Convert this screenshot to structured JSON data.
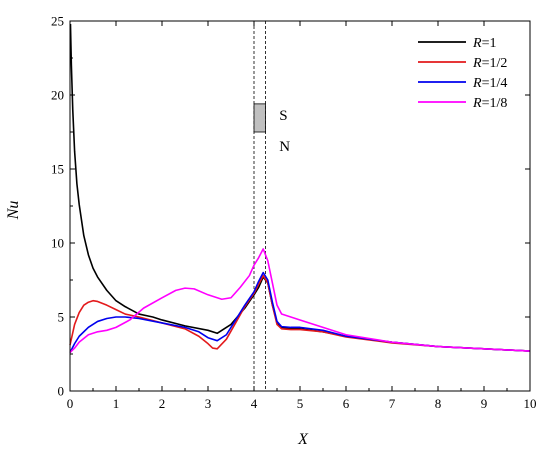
{
  "chart_data": {
    "type": "line",
    "xlabel": "X",
    "ylabel": "Nu",
    "xlim": [
      0,
      10
    ],
    "ylim": [
      0,
      25
    ],
    "xticks": [
      "0",
      "1",
      "2",
      "3",
      "4",
      "5",
      "6",
      "7",
      "8",
      "9",
      "10"
    ],
    "yticks": [
      "0",
      "5",
      "10",
      "15",
      "20",
      "25"
    ],
    "grid": false,
    "legend_position": "top-right",
    "reference_lines_x": [
      4.0,
      4.25
    ],
    "block": {
      "x": [
        4.0,
        4.25
      ],
      "y": [
        17.5,
        19.4
      ],
      "color": "#c0c0c0"
    },
    "annotations": [
      {
        "text": "S",
        "x": 4.55,
        "y": 18.3
      },
      {
        "text": "N",
        "x": 4.55,
        "y": 16.2
      }
    ],
    "series": [
      {
        "name": "R=1",
        "legend_var": "R",
        "legend_val": "=1",
        "color": "#000000",
        "x": [
          0.01,
          0.03,
          0.06,
          0.1,
          0.15,
          0.2,
          0.3,
          0.4,
          0.5,
          0.6,
          0.8,
          1.0,
          1.2,
          1.5,
          1.8,
          2.0,
          2.5,
          3.0,
          3.2,
          3.5,
          3.8,
          4.0,
          4.1,
          4.2,
          4.3,
          4.4,
          4.5,
          4.6,
          4.8,
          5.0,
          5.5,
          6.0,
          7.0,
          8.0,
          9.0,
          10.0
        ],
        "y": [
          24.8,
          22.0,
          19.0,
          16.2,
          14.0,
          12.6,
          10.5,
          9.2,
          8.3,
          7.7,
          6.8,
          6.1,
          5.7,
          5.2,
          5.0,
          4.8,
          4.4,
          4.1,
          3.9,
          4.5,
          5.6,
          6.5,
          7.0,
          7.7,
          7.3,
          5.8,
          4.6,
          4.3,
          4.2,
          4.2,
          4.0,
          3.7,
          3.3,
          3.0,
          2.85,
          2.7
        ]
      },
      {
        "name": "R=1/2",
        "legend_var": "R",
        "legend_val": "=1/2",
        "color": "#e31a1c",
        "x": [
          0.0,
          0.1,
          0.2,
          0.3,
          0.4,
          0.5,
          0.6,
          0.8,
          1.0,
          1.2,
          1.5,
          2.0,
          2.5,
          2.8,
          3.0,
          3.1,
          3.2,
          3.4,
          3.6,
          3.8,
          4.0,
          4.1,
          4.2,
          4.3,
          4.4,
          4.5,
          4.6,
          4.8,
          5.0,
          5.5,
          6.0,
          7.0,
          8.0,
          9.0,
          10.0
        ],
        "y": [
          3.1,
          4.5,
          5.3,
          5.8,
          6.0,
          6.1,
          6.05,
          5.8,
          5.5,
          5.2,
          5.0,
          4.6,
          4.2,
          3.7,
          3.2,
          2.9,
          2.85,
          3.5,
          4.6,
          5.7,
          6.6,
          7.2,
          7.8,
          7.3,
          5.8,
          4.5,
          4.2,
          4.15,
          4.15,
          4.0,
          3.65,
          3.25,
          3.0,
          2.85,
          2.7
        ]
      },
      {
        "name": "R=1/4",
        "legend_var": "R",
        "legend_val": "=1/4",
        "color": "#0000ee",
        "x": [
          0.0,
          0.1,
          0.2,
          0.4,
          0.6,
          0.8,
          1.0,
          1.2,
          1.5,
          2.0,
          2.5,
          2.8,
          3.0,
          3.2,
          3.4,
          3.6,
          3.8,
          4.0,
          4.1,
          4.2,
          4.3,
          4.4,
          4.5,
          4.6,
          4.8,
          5.0,
          5.5,
          6.0,
          7.0,
          8.0,
          9.0,
          10.0
        ],
        "y": [
          2.6,
          3.2,
          3.7,
          4.3,
          4.7,
          4.9,
          5.0,
          5.0,
          4.9,
          4.6,
          4.3,
          4.0,
          3.6,
          3.4,
          3.8,
          4.8,
          5.8,
          6.7,
          7.4,
          8.0,
          7.5,
          6.0,
          4.7,
          4.35,
          4.3,
          4.3,
          4.1,
          3.7,
          3.3,
          3.0,
          2.85,
          2.7
        ]
      },
      {
        "name": "R=1/8",
        "legend_var": "R",
        "legend_val": "=1/8",
        "color": "#ff00ff",
        "x": [
          0.0,
          0.1,
          0.2,
          0.4,
          0.6,
          0.8,
          1.0,
          1.3,
          1.6,
          2.0,
          2.3,
          2.5,
          2.7,
          3.0,
          3.3,
          3.5,
          3.7,
          3.9,
          4.0,
          4.1,
          4.2,
          4.3,
          4.4,
          4.5,
          4.6,
          4.8,
          5.0,
          5.5,
          6.0,
          7.0,
          8.0,
          9.0,
          10.0
        ],
        "y": [
          2.6,
          2.9,
          3.3,
          3.8,
          4.0,
          4.1,
          4.3,
          4.8,
          5.6,
          6.3,
          6.8,
          6.95,
          6.9,
          6.5,
          6.2,
          6.3,
          7.0,
          7.8,
          8.5,
          9.0,
          9.6,
          8.8,
          7.3,
          5.8,
          5.2,
          5.0,
          4.8,
          4.3,
          3.8,
          3.3,
          3.0,
          2.85,
          2.7
        ]
      }
    ]
  }
}
